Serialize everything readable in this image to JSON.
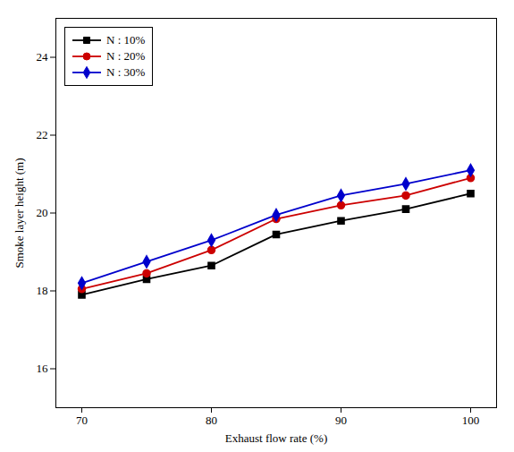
{
  "chart_data": {
    "type": "line",
    "xlabel": "Exhaust flow rate (%)",
    "ylabel": "Smoke layer height (m)",
    "x": [
      70,
      75,
      80,
      85,
      90,
      95,
      100
    ],
    "series": [
      {
        "name": "N : 10%",
        "color": "#000000",
        "marker": "square",
        "values": [
          17.9,
          18.3,
          18.65,
          19.45,
          19.8,
          20.1,
          20.5
        ]
      },
      {
        "name": "N : 20%",
        "color": "#cc0000",
        "marker": "circle",
        "values": [
          18.05,
          18.45,
          19.05,
          19.85,
          20.2,
          20.45,
          20.9
        ]
      },
      {
        "name": "N : 30%",
        "color": "#0000cc",
        "marker": "diamond",
        "values": [
          18.2,
          18.75,
          19.3,
          19.95,
          20.45,
          20.75,
          21.1
        ]
      }
    ],
    "xlim": [
      68,
      102
    ],
    "ylim": [
      15,
      25
    ],
    "xticks": [
      70,
      80,
      90,
      100
    ],
    "yticks": [
      16,
      18,
      20,
      22,
      24
    ],
    "grid": false,
    "legend": "upper left"
  }
}
